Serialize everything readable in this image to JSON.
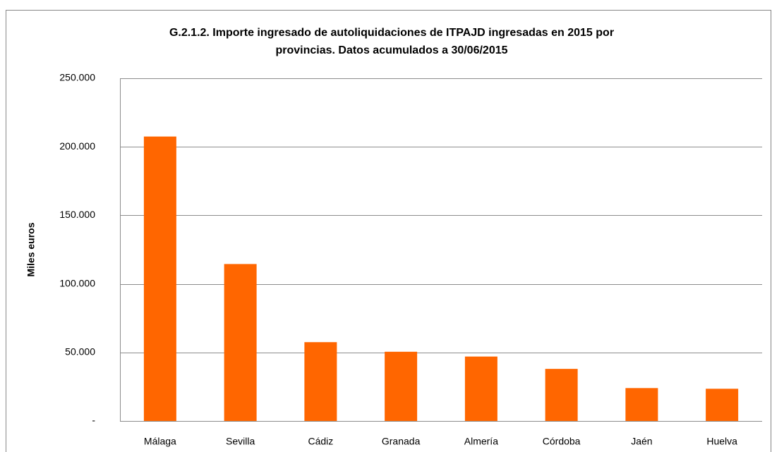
{
  "chart_data": {
    "type": "bar",
    "title": [
      "G.2.1.2. Importe ingresado de autoliquidaciones de ITPAJD ingresadas en 2015 por",
      "provincias. Datos acumulados a 30/06/2015"
    ],
    "y_label": "Miles euros",
    "categories": [
      "Málaga",
      "Sevilla",
      "Cádiz",
      "Granada",
      "Almería",
      "Córdoba",
      "Jaén",
      "Huelva"
    ],
    "values": [
      207500,
      114500,
      57500,
      50500,
      47000,
      38000,
      24000,
      23500
    ],
    "color": "#ff6600",
    "ylim": [
      0,
      250000
    ],
    "yticks": [
      {
        "value": 0,
        "label": "-"
      },
      {
        "value": 50000,
        "label": "50.000"
      },
      {
        "value": 100000,
        "label": "100.000"
      },
      {
        "value": 150000,
        "label": "150.000"
      },
      {
        "value": 200000,
        "label": "200.000"
      },
      {
        "value": 250000,
        "label": "250.000"
      }
    ],
    "grid": true
  }
}
